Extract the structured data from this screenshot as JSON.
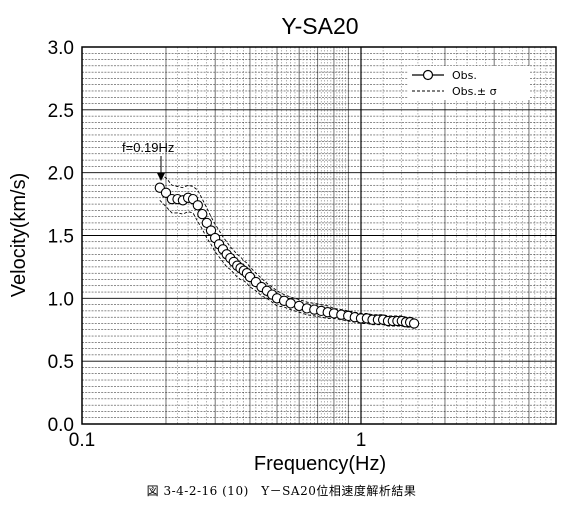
{
  "chart_data": {
    "type": "line",
    "title": "Y-SA20",
    "xlabel": "Frequency(Hz)",
    "ylabel": "Velocity(km/s)",
    "x_scale": "log",
    "xlim": [
      0.1,
      5
    ],
    "ylim": [
      0.0,
      3.0
    ],
    "x_tick_labels": [
      "0.1",
      "1"
    ],
    "y_tick_labels": [
      "0.0",
      "0.5",
      "1.0",
      "1.5",
      "2.0",
      "2.5",
      "3.0"
    ],
    "grid": true,
    "legend_position": "top-right",
    "series": [
      {
        "name": "Obs.",
        "style": "line-with-open-circles",
        "x": [
          0.19,
          0.2,
          0.21,
          0.22,
          0.23,
          0.24,
          0.25,
          0.26,
          0.27,
          0.28,
          0.29,
          0.3,
          0.31,
          0.32,
          0.33,
          0.34,
          0.35,
          0.36,
          0.37,
          0.38,
          0.39,
          0.4,
          0.42,
          0.44,
          0.46,
          0.48,
          0.5,
          0.53,
          0.56,
          0.6,
          0.64,
          0.68,
          0.72,
          0.76,
          0.8,
          0.85,
          0.9,
          0.95,
          1.0,
          1.05,
          1.1,
          1.15,
          1.2,
          1.25,
          1.3,
          1.35,
          1.4,
          1.45,
          1.5,
          1.55
        ],
        "y": [
          1.88,
          1.84,
          1.79,
          1.79,
          1.78,
          1.8,
          1.79,
          1.74,
          1.67,
          1.6,
          1.54,
          1.48,
          1.43,
          1.39,
          1.35,
          1.32,
          1.29,
          1.26,
          1.24,
          1.22,
          1.2,
          1.17,
          1.13,
          1.09,
          1.06,
          1.03,
          1.0,
          0.98,
          0.96,
          0.94,
          0.92,
          0.91,
          0.9,
          0.89,
          0.88,
          0.87,
          0.86,
          0.85,
          0.84,
          0.84,
          0.83,
          0.83,
          0.83,
          0.82,
          0.82,
          0.82,
          0.82,
          0.81,
          0.81,
          0.8
        ]
      },
      {
        "name": "Obs.± σ",
        "style": "dashed",
        "x": [
          0.19,
          0.2,
          0.21,
          0.22,
          0.23,
          0.24,
          0.25,
          0.26,
          0.27,
          0.28,
          0.29,
          0.3,
          0.31,
          0.32,
          0.33,
          0.34,
          0.35,
          0.36,
          0.37,
          0.38,
          0.39,
          0.4,
          0.42,
          0.44,
          0.46,
          0.48,
          0.5,
          0.53,
          0.56,
          0.6,
          0.64,
          0.68,
          0.72,
          0.76,
          0.8,
          0.85,
          0.9,
          0.95,
          1.0,
          1.05,
          1.1,
          1.15,
          1.2,
          1.25,
          1.3,
          1.35,
          1.4,
          1.45,
          1.5,
          1.55
        ],
        "upper": [
          1.98,
          1.96,
          1.9,
          1.89,
          1.88,
          1.9,
          1.89,
          1.86,
          1.79,
          1.72,
          1.65,
          1.59,
          1.54,
          1.49,
          1.45,
          1.41,
          1.38,
          1.35,
          1.33,
          1.3,
          1.28,
          1.25,
          1.2,
          1.16,
          1.12,
          1.09,
          1.06,
          1.03,
          1.01,
          0.99,
          0.97,
          0.96,
          0.95,
          0.94,
          0.92,
          0.91,
          0.9,
          0.89,
          0.88,
          0.88,
          0.87,
          0.87,
          0.87,
          0.86,
          0.86,
          0.86,
          0.86,
          0.85,
          0.85,
          0.84
        ],
        "lower": [
          1.78,
          1.73,
          1.68,
          1.68,
          1.67,
          1.69,
          1.68,
          1.61,
          1.55,
          1.48,
          1.43,
          1.37,
          1.33,
          1.29,
          1.25,
          1.23,
          1.2,
          1.17,
          1.15,
          1.14,
          1.12,
          1.09,
          1.06,
          1.02,
          1.0,
          0.97,
          0.94,
          0.93,
          0.91,
          0.89,
          0.87,
          0.86,
          0.85,
          0.84,
          0.84,
          0.83,
          0.82,
          0.81,
          0.8,
          0.8,
          0.79,
          0.79,
          0.79,
          0.78,
          0.78,
          0.78,
          0.78,
          0.77,
          0.77,
          0.76
        ]
      }
    ],
    "annotations": [
      {
        "text": "f=0.19Hz",
        "x": 0.19,
        "y": 1.88,
        "arrow": true
      }
    ]
  },
  "legend": {
    "obs_label": "Obs.",
    "sigma_label": "Obs.± σ"
  },
  "caption": "図 3-4-2-16 (10)　Y－SA20位相速度解析結果"
}
